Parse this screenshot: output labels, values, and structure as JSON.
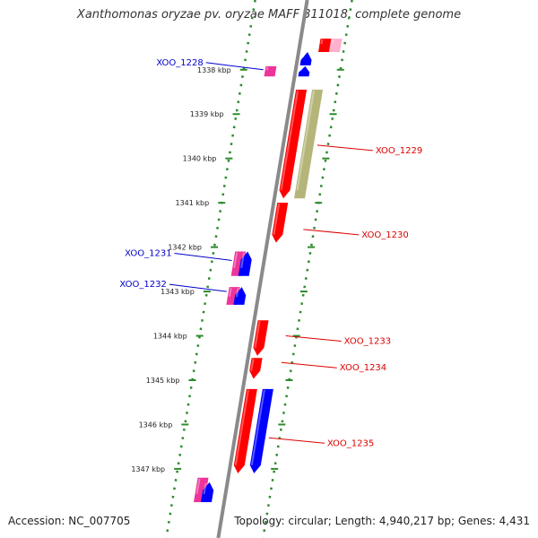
{
  "title": "Xanthomonas oryzae pv. oryzae MAFF 311018, complete genome",
  "accession_text": "Accession: NC_007705",
  "summary_text": "Topology: circular; Length: 4,940,217 bp; Genes: 4,431",
  "colors": {
    "backbone": "#8a8a8a",
    "dotted_track": "#2e8b2e",
    "label_blue": "#0000cc",
    "label_red": "#dd0000",
    "feature_red": "#ff0000",
    "feature_blue": "#0000ff",
    "feature_pink": "#ee3399",
    "feature_light_pink": "#ffb0cc",
    "feature_olive": "#b5b57a"
  },
  "diagram": {
    "start_kbp": 1337.6,
    "end_kbp": 1347.75,
    "ticks": [
      {
        "kbp": 1338,
        "label": "1338 kbp"
      },
      {
        "kbp": 1339,
        "label": "1339 kbp"
      },
      {
        "kbp": 1340,
        "label": "1340 kbp"
      },
      {
        "kbp": 1341,
        "label": "1341 kbp"
      },
      {
        "kbp": 1342,
        "label": "1342 kbp"
      },
      {
        "kbp": 1343,
        "label": "1343 kbp"
      },
      {
        "kbp": 1344,
        "label": "1344 kbp"
      },
      {
        "kbp": 1345,
        "label": "1345 kbp"
      },
      {
        "kbp": 1346,
        "label": "1346 kbp"
      },
      {
        "kbp": 1347,
        "label": "1347 kbp"
      }
    ],
    "features": [
      {
        "id": "top-red-block",
        "start_kbp": 1337.3,
        "end_kbp": 1337.6,
        "track": "outer2",
        "color": "feature_red",
        "arrow": "none"
      },
      {
        "id": "top-pink-block",
        "start_kbp": 1337.3,
        "end_kbp": 1337.6,
        "track": "outer3",
        "color": "feature_light_pink",
        "arrow": "none"
      },
      {
        "id": "XOO_1228-blue",
        "start_kbp": 1337.6,
        "end_kbp": 1337.9,
        "track": "outer1",
        "color": "feature_blue",
        "arrow": "start"
      },
      {
        "id": "XOO_1228-blue-b",
        "start_kbp": 1337.92,
        "end_kbp": 1338.15,
        "track": "outer1",
        "color": "feature_blue",
        "arrow": "start"
      },
      {
        "id": "XOO_1228-pink",
        "start_kbp": 1337.92,
        "end_kbp": 1338.15,
        "track": "inner1",
        "color": "feature_pink",
        "arrow": "none"
      },
      {
        "id": "XOO_1229-red",
        "start_kbp": 1338.45,
        "end_kbp": 1340.9,
        "track": "outer1",
        "color": "feature_red",
        "arrow": "end"
      },
      {
        "id": "XOO_1229-olive",
        "start_kbp": 1338.45,
        "end_kbp": 1340.9,
        "track": "outer2",
        "color": "feature_olive",
        "arrow": "none"
      },
      {
        "id": "XOO_1230-red",
        "start_kbp": 1341.0,
        "end_kbp": 1341.9,
        "track": "outer1",
        "color": "feature_red",
        "arrow": "end"
      },
      {
        "id": "XOO_1231-pink",
        "start_kbp": 1342.1,
        "end_kbp": 1342.65,
        "track": "inner1",
        "color": "feature_pink",
        "arrow": "none"
      },
      {
        "id": "XOO_1231-blue",
        "start_kbp": 1342.1,
        "end_kbp": 1342.65,
        "track": "inner2",
        "color": "feature_blue",
        "arrow": "start"
      },
      {
        "id": "XOO_1232-pink",
        "start_kbp": 1342.9,
        "end_kbp": 1343.3,
        "track": "inner1",
        "color": "feature_pink",
        "arrow": "none"
      },
      {
        "id": "XOO_1232-blue",
        "start_kbp": 1342.9,
        "end_kbp": 1343.3,
        "track": "inner2",
        "color": "feature_blue",
        "arrow": "start"
      },
      {
        "id": "XOO_1233-red",
        "start_kbp": 1343.65,
        "end_kbp": 1344.45,
        "track": "outer1",
        "color": "feature_red",
        "arrow": "end"
      },
      {
        "id": "XOO_1234-red",
        "start_kbp": 1344.5,
        "end_kbp": 1344.97,
        "track": "outer1",
        "color": "feature_red",
        "arrow": "end"
      },
      {
        "id": "XOO_1235-red",
        "start_kbp": 1345.2,
        "end_kbp": 1347.1,
        "track": "outer1",
        "color": "feature_red",
        "arrow": "end"
      },
      {
        "id": "XOO_1235-blue",
        "start_kbp": 1345.2,
        "end_kbp": 1347.1,
        "track": "outer2",
        "color": "feature_blue",
        "arrow": "end"
      },
      {
        "id": "bottom-pink",
        "start_kbp": 1347.2,
        "end_kbp": 1347.75,
        "track": "inner1",
        "color": "feature_pink",
        "arrow": "none"
      },
      {
        "id": "bottom-blue",
        "start_kbp": 1347.3,
        "end_kbp": 1347.75,
        "track": "inner2",
        "color": "feature_blue",
        "arrow": "start"
      }
    ],
    "gene_labels": [
      {
        "text": "XOO_1228",
        "side": "left",
        "color": "label_blue",
        "target_kbp": 1338.0
      },
      {
        "text": "XOO_1229",
        "side": "right",
        "color": "label_red",
        "target_kbp": 1339.7
      },
      {
        "text": "XOO_1230",
        "side": "right",
        "color": "label_red",
        "target_kbp": 1341.6
      },
      {
        "text": "XOO_1231",
        "side": "left",
        "color": "label_blue",
        "target_kbp": 1342.3
      },
      {
        "text": "XOO_1232",
        "side": "left",
        "color": "label_blue",
        "target_kbp": 1343.0
      },
      {
        "text": "XOO_1233",
        "side": "right",
        "color": "label_red",
        "target_kbp": 1344.0
      },
      {
        "text": "XOO_1234",
        "side": "right",
        "color": "label_red",
        "target_kbp": 1344.6
      },
      {
        "text": "XOO_1235",
        "side": "right",
        "color": "label_red",
        "target_kbp": 1346.3
      }
    ]
  }
}
